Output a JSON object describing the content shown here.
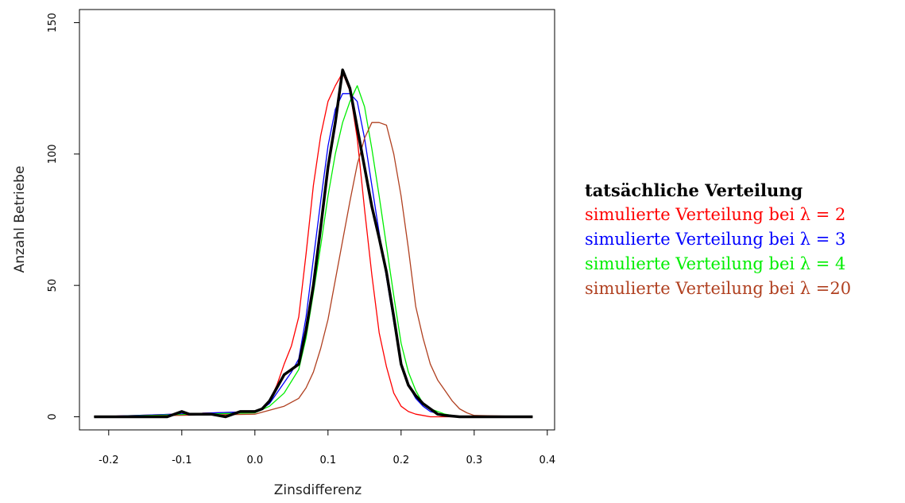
{
  "chart_data": {
    "type": "line",
    "xlabel": "Zinsdifferenz",
    "ylabel": "Anzahl Betriebe",
    "xlim": [
      -0.24,
      0.41
    ],
    "ylim": [
      -5,
      155
    ],
    "xticks": [
      -0.2,
      -0.1,
      0.0,
      0.1,
      0.2,
      0.3,
      0.4
    ],
    "xtick_labels": [
      "-0.2",
      "-0.1",
      "0.0",
      "0.1",
      "0.2",
      "0.3",
      "0.4"
    ],
    "yticks": [
      0,
      50,
      100,
      150
    ],
    "ytick_labels": [
      "0",
      "50",
      "100",
      "150"
    ],
    "grid": false,
    "legend_position": "right",
    "series": [
      {
        "name": "tatsächliche Verteilung",
        "color": "#000000",
        "bold": true,
        "x": [
          -0.22,
          -0.12,
          -0.1,
          -0.09,
          -0.06,
          -0.04,
          -0.02,
          0.0,
          0.01,
          0.02,
          0.03,
          0.04,
          0.05,
          0.06,
          0.07,
          0.08,
          0.09,
          0.1,
          0.11,
          0.12,
          0.13,
          0.14,
          0.15,
          0.16,
          0.17,
          0.18,
          0.19,
          0.2,
          0.21,
          0.22,
          0.23,
          0.24,
          0.25,
          0.26,
          0.28,
          0.3,
          0.38
        ],
        "y": [
          0,
          0,
          2,
          1,
          1,
          0,
          2,
          2,
          3,
          6,
          11,
          16,
          18,
          20,
          33,
          50,
          72,
          95,
          112,
          132,
          125,
          110,
          95,
          80,
          68,
          55,
          38,
          20,
          12,
          8,
          5,
          3,
          1,
          0.5,
          0,
          0,
          0
        ]
      },
      {
        "name": "simulierte Verteilung bei λ = 2",
        "color": "#ff0000",
        "x": [
          -0.22,
          0.0,
          0.01,
          0.02,
          0.03,
          0.04,
          0.05,
          0.06,
          0.07,
          0.08,
          0.09,
          0.1,
          0.11,
          0.12,
          0.13,
          0.14,
          0.15,
          0.16,
          0.17,
          0.18,
          0.19,
          0.2,
          0.21,
          0.22,
          0.23,
          0.24,
          0.26,
          0.38
        ],
        "y": [
          0,
          2,
          3,
          6,
          12,
          20,
          27,
          38,
          62,
          88,
          107,
          120,
          126,
          131,
          124,
          106,
          79,
          54,
          32,
          19,
          9,
          4,
          2,
          1,
          0.5,
          0,
          0,
          0
        ]
      },
      {
        "name": "simulierte Verteilung bei λ = 3",
        "color": "#0000ff",
        "x": [
          -0.22,
          0.0,
          0.01,
          0.02,
          0.03,
          0.04,
          0.05,
          0.06,
          0.07,
          0.08,
          0.09,
          0.1,
          0.11,
          0.12,
          0.13,
          0.14,
          0.15,
          0.16,
          0.17,
          0.18,
          0.19,
          0.2,
          0.21,
          0.22,
          0.23,
          0.24,
          0.26,
          0.28,
          0.38
        ],
        "y": [
          0,
          2,
          3,
          5,
          9,
          13,
          17,
          22,
          38,
          60,
          82,
          103,
          117,
          123,
          123,
          120,
          106,
          88,
          70,
          53,
          36,
          20,
          12,
          7,
          4,
          2,
          0.5,
          0,
          0
        ]
      },
      {
        "name": "simulierte Verteilung bei λ = 4",
        "color": "#00ee00",
        "x": [
          -0.22,
          0.0,
          0.02,
          0.04,
          0.06,
          0.07,
          0.08,
          0.09,
          0.1,
          0.11,
          0.12,
          0.13,
          0.14,
          0.15,
          0.16,
          0.17,
          0.18,
          0.19,
          0.2,
          0.21,
          0.22,
          0.23,
          0.24,
          0.26,
          0.28,
          0.38
        ],
        "y": [
          0,
          1.5,
          4,
          9,
          18,
          30,
          47,
          65,
          84,
          100,
          112,
          120,
          126,
          118,
          102,
          84,
          65,
          46,
          28,
          17,
          10,
          5,
          3,
          1,
          0,
          0
        ]
      },
      {
        "name": "simulierte Verteilung bei λ =20",
        "color": "#b04020",
        "x": [
          -0.22,
          0.0,
          0.02,
          0.04,
          0.06,
          0.07,
          0.08,
          0.09,
          0.1,
          0.11,
          0.12,
          0.13,
          0.14,
          0.15,
          0.16,
          0.17,
          0.18,
          0.19,
          0.2,
          0.21,
          0.22,
          0.23,
          0.24,
          0.25,
          0.26,
          0.27,
          0.28,
          0.29,
          0.3,
          0.38
        ],
        "y": [
          0,
          1,
          2.5,
          4,
          7,
          11,
          17,
          26,
          37,
          52,
          67,
          82,
          96,
          106,
          112,
          112,
          111,
          100,
          84,
          64,
          42,
          30,
          20,
          14,
          10,
          6,
          3,
          1.5,
          0.5,
          0
        ]
      }
    ]
  }
}
